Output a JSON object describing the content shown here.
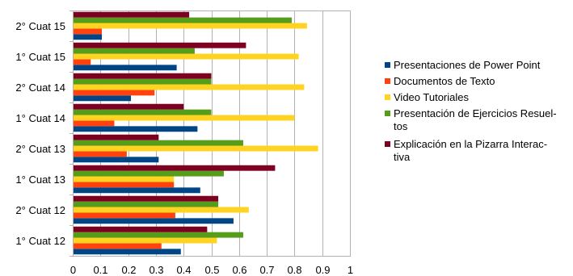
{
  "chart_data": {
    "type": "bar",
    "orientation": "horizontal",
    "title": "",
    "xlabel": "",
    "ylabel": "",
    "categories": [
      "1° Cuat 12",
      "2° Cuat 12",
      "1° Cuat 13",
      "2° Cuat 13",
      "1° Cuat 14",
      "2° Cuat 14",
      "1° Cuat 15",
      "2° Cuat 15"
    ],
    "xlim": [
      0,
      1
    ],
    "x_ticks": [
      "0",
      "0.1",
      "0.2",
      "0.3",
      "0.4",
      "0.5",
      "0.6",
      "0.7",
      "0.8",
      "0.9",
      "1"
    ],
    "grid": true,
    "legend_position": "right",
    "series": [
      {
        "name": "Presentaciones de Power Point",
        "legend_lines": [
          "Presentaciones de Power Point"
        ],
        "color": "#004586",
        "values": [
          0.39,
          0.58,
          0.46,
          0.31,
          0.45,
          0.21,
          0.375,
          0.105
        ]
      },
      {
        "name": "Documentos de Texto",
        "legend_lines": [
          "Documentos de Texto"
        ],
        "color": "#ff420e",
        "values": [
          0.32,
          0.37,
          0.365,
          0.195,
          0.15,
          0.295,
          0.065,
          0.105
        ]
      },
      {
        "name": "Video Tutoriales",
        "legend_lines": [
          "Video Tutoriales"
        ],
        "color": "#ffd320",
        "values": [
          0.52,
          0.635,
          0.365,
          0.885,
          0.8,
          0.835,
          0.815,
          0.845
        ]
      },
      {
        "name": "Presentación de Ejercicios Resueltos",
        "legend_lines": [
          "Presentación de Ejercicios Resuel-",
          "tos"
        ],
        "color": "#579d1c",
        "values": [
          0.615,
          0.525,
          0.545,
          0.615,
          0.5,
          0.5,
          0.44,
          0.79
        ]
      },
      {
        "name": "Explicación en la Pizarra Interactiva",
        "legend_lines": [
          "Explicación en la Pizarra Interac-",
          "tiva"
        ],
        "color": "#7e0021",
        "values": [
          0.485,
          0.525,
          0.73,
          0.31,
          0.4,
          0.5,
          0.625,
          0.42
        ]
      }
    ]
  }
}
